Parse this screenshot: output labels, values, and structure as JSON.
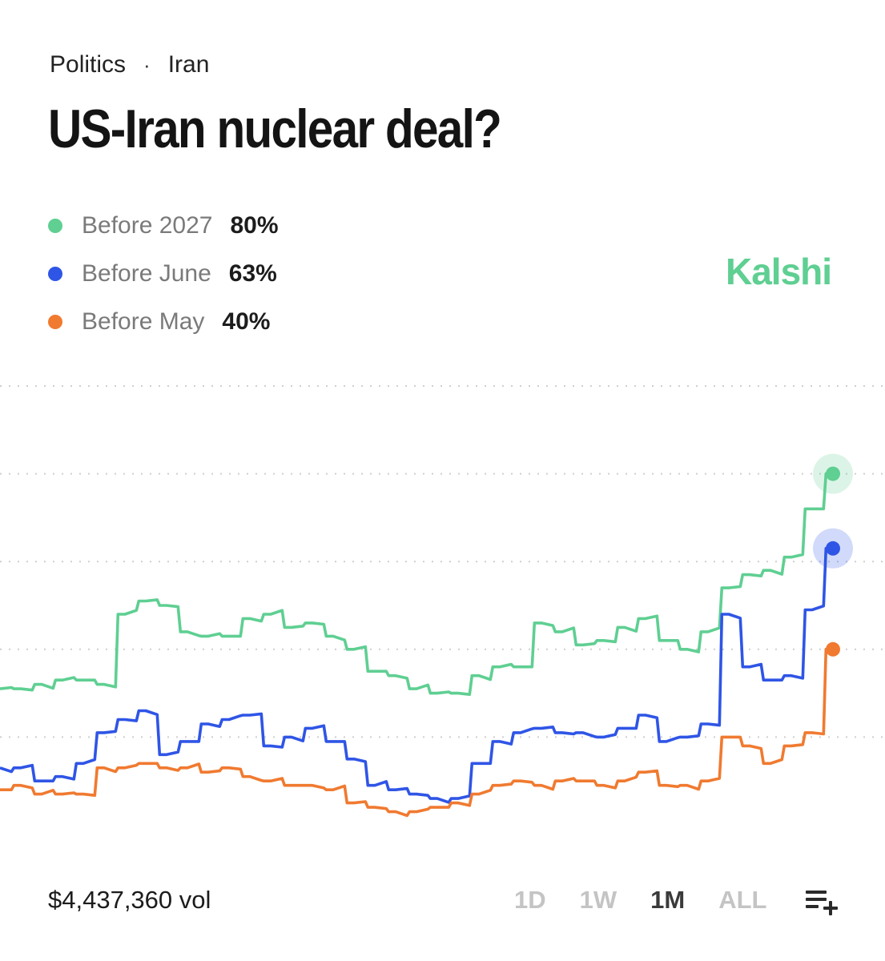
{
  "breadcrumb": {
    "category": "Politics",
    "separator": "·",
    "subcategory": "Iran"
  },
  "title": "US-Iran nuclear deal?",
  "brand": "Kalshi",
  "colors": {
    "green": "#5fcf92",
    "blue": "#2f55e6",
    "orange": "#f07a30",
    "grid": "#cfcfcf"
  },
  "legend": [
    {
      "label": "Before 2027",
      "value": "80%",
      "color": "#5fcf92"
    },
    {
      "label": "Before June",
      "value": "63%",
      "color": "#2f55e6"
    },
    {
      "label": "Before May",
      "value": "40%",
      "color": "#f07a30"
    }
  ],
  "volume": "$4,437,360 vol",
  "ranges": [
    {
      "label": "1D",
      "active": false
    },
    {
      "label": "1W",
      "active": false
    },
    {
      "label": "1M",
      "active": true
    },
    {
      "label": "ALL",
      "active": false
    }
  ],
  "chart_data": {
    "type": "line",
    "title": "US-Iran nuclear deal?",
    "xlabel": "",
    "ylabel": "",
    "ylim": [
      0,
      100
    ],
    "gridlines": [
      20,
      40,
      60,
      80,
      100
    ],
    "series": [
      {
        "name": "Before 2027",
        "color": "#5fcf92",
        "values": [
          31,
          31,
          32,
          33,
          33,
          32,
          48,
          51,
          50,
          44,
          43,
          43,
          47,
          48,
          45,
          46,
          43,
          40,
          35,
          34,
          31,
          30,
          30,
          34,
          36,
          36,
          46,
          44,
          41,
          42,
          45,
          47,
          42,
          40,
          44,
          54,
          57,
          58,
          61,
          72,
          80
        ]
      },
      {
        "name": "Before June",
        "color": "#2f55e6",
        "values": [
          13,
          13,
          10,
          11,
          14,
          21,
          24,
          26,
          16,
          19,
          23,
          24,
          25,
          18,
          20,
          22,
          19,
          15,
          9,
          8,
          7,
          6,
          6,
          14,
          19,
          21,
          22,
          21,
          21,
          20,
          22,
          25,
          19,
          20,
          23,
          48,
          36,
          33,
          34,
          49,
          63
        ]
      },
      {
        "name": "Before May",
        "color": "#f07a30",
        "values": [
          8,
          9,
          7,
          7,
          7,
          13,
          13,
          14,
          13,
          13,
          12,
          13,
          11,
          10,
          9,
          9,
          8,
          5,
          4,
          3,
          3,
          4,
          5,
          7,
          9,
          10,
          9,
          10,
          10,
          9,
          10,
          12,
          9,
          9,
          10,
          20,
          18,
          14,
          18,
          21,
          40
        ]
      }
    ]
  }
}
